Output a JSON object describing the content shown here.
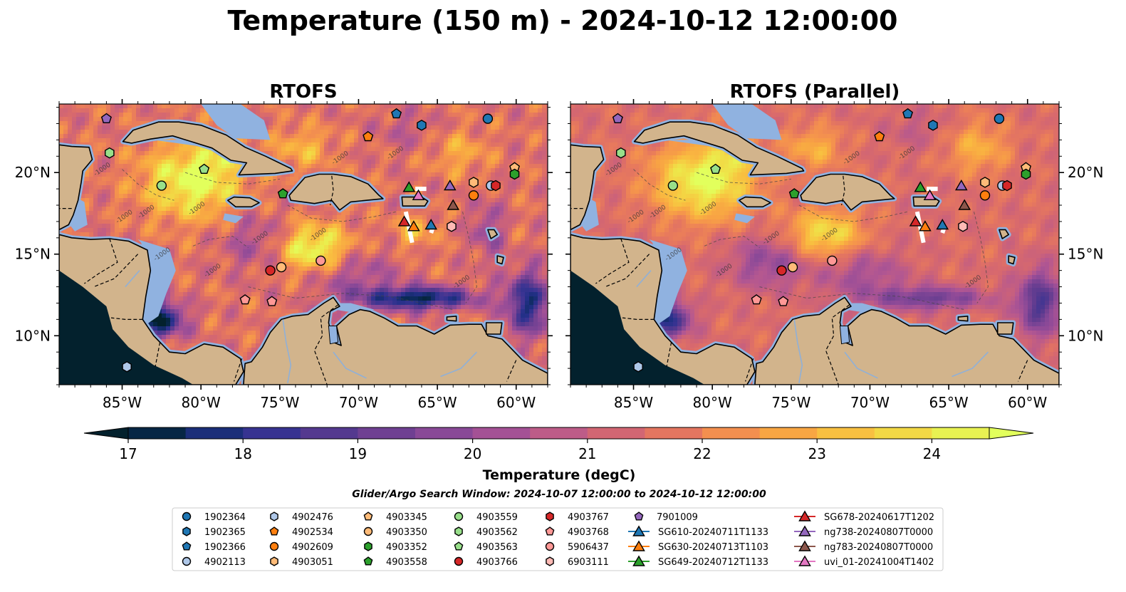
{
  "figure": {
    "title": "Temperature (150 m) - 2024-10-12 12:00:00"
  },
  "chart_data": {
    "type": "heatmap",
    "variable": "Temperature",
    "depth_m": 150,
    "panels": [
      {
        "title": "RTOFS",
        "model": "RTOFS"
      },
      {
        "title": "RTOFS (Parallel)",
        "model": "RTOFS (Parallel)"
      }
    ],
    "map": {
      "lon_range": [
        -89.0,
        -58.0
      ],
      "lat_range": [
        7.0,
        24.2
      ],
      "x_ticks": [
        -85,
        -80,
        -75,
        -70,
        -65,
        -60
      ],
      "x_tick_labels": [
        "85°W",
        "80°W",
        "75°W",
        "70°W",
        "65°W",
        "60°W"
      ],
      "y_ticks": [
        10,
        15,
        20
      ],
      "y_tick_labels": [
        "10°N",
        "15°N",
        "20°N"
      ],
      "contour_label": "-1000",
      "land_color": "#d2b48c",
      "shelf_color": "#90b2e0"
    },
    "colorbar": {
      "label": "Temperature (degC)",
      "range": [
        17,
        24.5
      ],
      "ticks": [
        17,
        18,
        19,
        20,
        21,
        22,
        23,
        24
      ],
      "tick_labels": [
        "17",
        "18",
        "19",
        "20",
        "21",
        "22",
        "23",
        "24"
      ],
      "colormap_stops": [
        "#03212d",
        "#092a55",
        "#233088",
        "#3b3493",
        "#55398f",
        "#6d3f91",
        "#844797",
        "#9b4e97",
        "#b35791",
        "#c7607e",
        "#d8696d",
        "#e87a5c",
        "#f4914e",
        "#f8a543",
        "#f9bc40",
        "#f4d243",
        "#ede84a",
        "#e2ff5c"
      ]
    },
    "search_window": "Glider/Argo Search Window: 2024-10-07 12:00:00 to 2024-10-12 12:00:00",
    "platforms": [
      {
        "id": "1902364",
        "type": "argo",
        "marker": "circle",
        "color": "#1f77b4",
        "lon": -61.8,
        "lat": 23.3
      },
      {
        "id": "1902365",
        "type": "argo",
        "marker": "hexagon",
        "color": "#1f77b4",
        "lon": -66.0,
        "lat": 22.9
      },
      {
        "id": "1902366",
        "type": "argo",
        "marker": "pentagon",
        "color": "#1f77b4",
        "lon": -67.6,
        "lat": 23.6
      },
      {
        "id": "4902113",
        "type": "argo",
        "marker": "circle",
        "color": "#aec7e8",
        "lon": -61.6,
        "lat": 19.2
      },
      {
        "id": "4902476",
        "type": "argo",
        "marker": "hexagon",
        "color": "#aec7e8",
        "lon": -84.7,
        "lat": 8.1
      },
      {
        "id": "4902534",
        "type": "argo",
        "marker": "pentagon",
        "color": "#ff7f0e",
        "lon": -69.4,
        "lat": 22.2
      },
      {
        "id": "4902609",
        "type": "argo",
        "marker": "circle",
        "color": "#ff7f0e",
        "lon": -62.7,
        "lat": 18.6
      },
      {
        "id": "4903051",
        "type": "argo",
        "marker": "hexagon",
        "color": "#ffbb78",
        "lon": -62.7,
        "lat": 19.4
      },
      {
        "id": "4903345",
        "type": "argo",
        "marker": "pentagon",
        "color": "#ffbb78",
        "lon": -60.1,
        "lat": 20.3
      },
      {
        "id": "4903350",
        "type": "argo",
        "marker": "circle",
        "color": "#ffbb78",
        "lon": -74.9,
        "lat": 14.2
      },
      {
        "id": "4903352",
        "type": "argo",
        "marker": "hexagon",
        "color": "#2ca02c",
        "lon": -60.1,
        "lat": 19.9
      },
      {
        "id": "4903558",
        "type": "argo",
        "marker": "pentagon",
        "color": "#2ca02c",
        "lon": -74.8,
        "lat": 18.7
      },
      {
        "id": "4903559",
        "type": "argo",
        "marker": "circle",
        "color": "#98df8a",
        "lon": -82.5,
        "lat": 19.2
      },
      {
        "id": "4903562",
        "type": "argo",
        "marker": "hexagon",
        "color": "#98df8a",
        "lon": -85.8,
        "lat": 21.2
      },
      {
        "id": "4903563",
        "type": "argo",
        "marker": "pentagon",
        "color": "#98df8a",
        "lon": -79.8,
        "lat": 20.2
      },
      {
        "id": "4903766",
        "type": "argo",
        "marker": "circle",
        "color": "#d62728",
        "lon": -75.6,
        "lat": 14.0
      },
      {
        "id": "4903767",
        "type": "argo",
        "marker": "hexagon",
        "color": "#d62728",
        "lon": -61.3,
        "lat": 19.2
      },
      {
        "id": "4903768",
        "type": "argo",
        "marker": "pentagon",
        "color": "#ff9896",
        "lon": -77.2,
        "lat": 12.2
      },
      {
        "id": "5906437",
        "type": "argo",
        "marker": "circle",
        "color": "#ff9896",
        "lon": -72.4,
        "lat": 14.6
      },
      {
        "id": "6903111",
        "type": "argo",
        "marker": "hexagon",
        "color": "#ffbab5",
        "lon": -64.1,
        "lat": 16.7
      },
      {
        "id": "7901009",
        "type": "argo",
        "marker": "pentagon",
        "color": "#9467bd",
        "lon": -86.0,
        "lat": 23.3
      },
      {
        "id": "4903768b",
        "legend": false,
        "type": "argo",
        "marker": "pentagon",
        "color": "#ff9896",
        "lon": -75.5,
        "lat": 12.1
      },
      {
        "id": "SG610-20240711T1133",
        "type": "glider",
        "marker": "triangle",
        "color": "#1f77b4",
        "lon": -65.4,
        "lat": 16.8
      },
      {
        "id": "SG630-20240713T1103",
        "type": "glider",
        "marker": "triangle",
        "color": "#ff7f0e",
        "lon": -66.5,
        "lat": 16.7
      },
      {
        "id": "SG649-20240712T1133",
        "type": "glider",
        "marker": "triangle",
        "color": "#2ca02c",
        "lon": -66.8,
        "lat": 19.1
      },
      {
        "id": "SG678-20240617T1202",
        "type": "glider",
        "marker": "triangle",
        "color": "#d62728",
        "lon": -67.1,
        "lat": 17.0
      },
      {
        "id": "ng738-20240807T0000",
        "type": "glider",
        "marker": "triangle",
        "color": "#9467bd",
        "lon": -64.2,
        "lat": 19.2
      },
      {
        "id": "ng783-20240807T0000",
        "type": "glider",
        "marker": "triangle",
        "color": "#8c564b",
        "lon": -64.0,
        "lat": 18.0
      },
      {
        "id": "uvi_01-20241004T1402",
        "type": "glider",
        "marker": "triangle",
        "color": "#e377c2",
        "lon": -66.2,
        "lat": 18.6
      }
    ],
    "legend": {
      "columns": [
        [
          "1902364",
          "1902365",
          "1902366",
          "4902113"
        ],
        [
          "4902476",
          "4902534",
          "4902609",
          "4903051"
        ],
        [
          "4903345",
          "4903350",
          "4903352",
          "4903558"
        ],
        [
          "4903559",
          "4903562",
          "4903563",
          "4903766"
        ],
        [
          "4903767",
          "4903768",
          "5906437",
          "6903111"
        ],
        [
          "7901009",
          "SG610-20240711T1133",
          "SG630-20240713T1103",
          "SG649-20240712T1133"
        ],
        [
          "SG678-20240617T1202",
          "ng738-20240807T0000",
          "ng783-20240807T0000",
          "uvi_01-20241004T1402"
        ]
      ]
    }
  }
}
